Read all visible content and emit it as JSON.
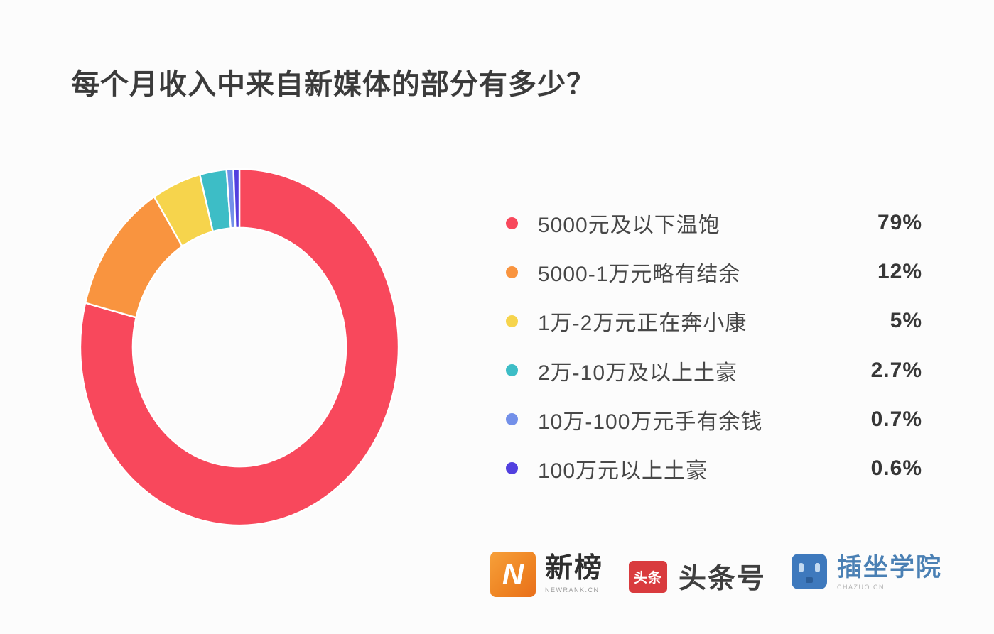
{
  "page": {
    "background": "#fcfcfc"
  },
  "title": "每个月收入中来自新媒体的部分有多少？",
  "chart_data": {
    "type": "pie",
    "subtype": "donut",
    "title": "每个月收入中来自新媒体的部分有多少？",
    "categories": [
      "5000元及以下温饱",
      "5000-1万元略有结余",
      "1万-2万元正在奔小康",
      "2万-10万及以上土豪",
      "10万-100万元手有余钱",
      "100万元以上土豪"
    ],
    "values": [
      79,
      12,
      5,
      2.7,
      0.7,
      0.6
    ],
    "values_display": [
      "79%",
      "12%",
      "5%",
      "2.7%",
      "0.7%",
      "0.6%"
    ],
    "colors": [
      "#f8485c",
      "#f9943f",
      "#f6d44c",
      "#3dbdc6",
      "#7390e9",
      "#5240df"
    ],
    "start_angle_deg": -90,
    "direction": "clockwise",
    "donut_hole_ratio": 0.67,
    "slice_gap_color": "#ffffff",
    "legend_position": "right",
    "data_labels": false
  },
  "footer": {
    "logos": [
      {
        "id": "newrank",
        "brand_color": "#ee8322",
        "letter": "N",
        "text": "新榜",
        "subtext": "NEWRANK.CN"
      },
      {
        "id": "toutiao",
        "brand_color": "#d93b3e",
        "badge_text": "头条",
        "text": "头条号"
      },
      {
        "id": "chazuo",
        "brand_color": "#3e79bd",
        "text": "插坐学院",
        "subtext": "CHAZUO.CN"
      }
    ]
  }
}
